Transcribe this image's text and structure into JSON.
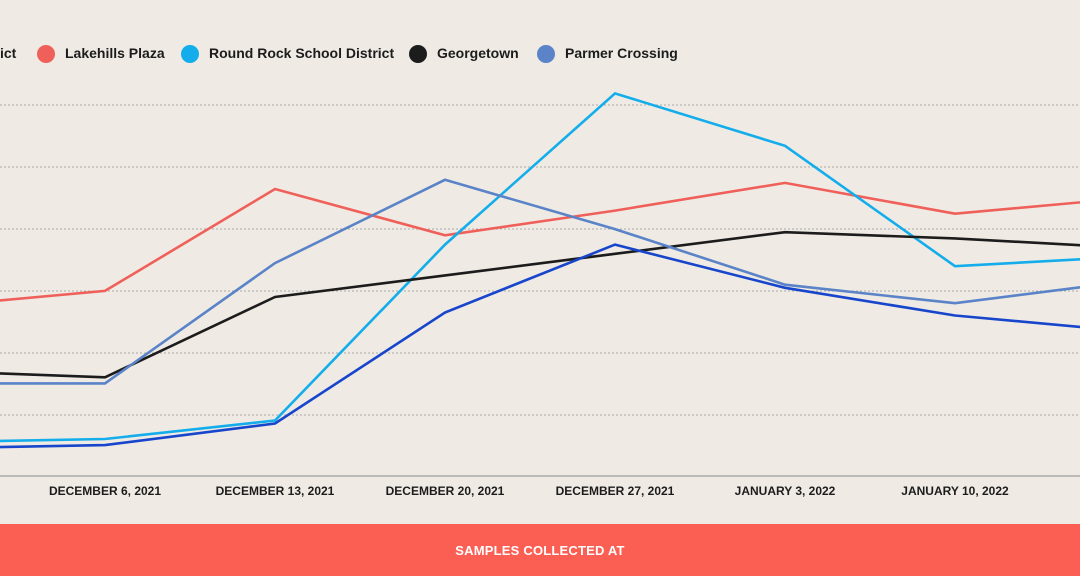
{
  "colors": {
    "background": "#efebe4",
    "gridline": "#a8a8a8",
    "axis": "#8a8a8a",
    "footer": "#fb5e52"
  },
  "footer": {
    "label": "SAMPLES COLLECTED AT"
  },
  "chart_data": {
    "type": "line",
    "title": "",
    "xlabel": "SAMPLES COLLECTED AT",
    "ylabel": "",
    "grid": true,
    "legend_position": "top",
    "x": [
      "2021-11-29",
      "2021-12-06",
      "2021-12-13",
      "2021-12-20",
      "2021-12-27",
      "2022-01-03",
      "2022-01-10",
      "2022-01-17"
    ],
    "x_tick_labels": [
      "DECEMBER 6, 2021",
      "DECEMBER 13, 2021",
      "DECEMBER 20, 2021",
      "DECEMBER 27, 2021",
      "JANUARY 3, 2022",
      "JANUARY 10, 2022"
    ],
    "x_tick_dates": [
      "2021-12-06",
      "2021-12-13",
      "2021-12-20",
      "2021-12-27",
      "2022-01-03",
      "2022-01-10"
    ],
    "partial_legend_label": "ict",
    "series": [
      {
        "name": "Lakehills Plaza",
        "color": "#f0605a",
        "points": [
          [
            "2021-11-29",
            2.75
          ],
          [
            "2021-12-06",
            3.0
          ],
          [
            "2021-12-13",
            4.65
          ],
          [
            "2021-12-20",
            3.9
          ],
          [
            "2021-12-27",
            4.3
          ],
          [
            "2022-01-03",
            4.75
          ],
          [
            "2022-01-10",
            4.25
          ],
          [
            "2022-01-17",
            4.5
          ]
        ]
      },
      {
        "name": "Round Rock School District",
        "color": "#14adeb",
        "points": [
          [
            "2021-11-29",
            0.55
          ],
          [
            "2021-12-06",
            0.6
          ],
          [
            "2021-12-13",
            0.9
          ],
          [
            "2021-12-20",
            3.75
          ],
          [
            "2021-12-27",
            6.2
          ],
          [
            "2022-01-03",
            5.35
          ],
          [
            "2022-01-10",
            3.4
          ],
          [
            "2022-01-17",
            3.55
          ]
        ]
      },
      {
        "name": "Georgetown",
        "color": "#1c1c1c",
        "points": [
          [
            "2021-11-29",
            1.7
          ],
          [
            "2021-12-06",
            1.6
          ],
          [
            "2021-12-13",
            2.9
          ],
          [
            "2021-12-20",
            3.25
          ],
          [
            "2021-12-27",
            3.6
          ],
          [
            "2022-01-03",
            3.95
          ],
          [
            "2022-01-10",
            3.85
          ],
          [
            "2022-01-17",
            3.7
          ]
        ]
      },
      {
        "name": "Parmer Crossing",
        "color": "#5a83c8",
        "points": [
          [
            "2021-11-29",
            1.5
          ],
          [
            "2021-12-06",
            1.5
          ],
          [
            "2021-12-13",
            3.45
          ],
          [
            "2021-12-20",
            4.8
          ],
          [
            "2021-12-27",
            4.0
          ],
          [
            "2022-01-03",
            3.1
          ],
          [
            "2022-01-10",
            2.8
          ],
          [
            "2022-01-17",
            3.15
          ]
        ]
      },
      {
        "name": "",
        "color": "#1746cc",
        "points": [
          [
            "2021-11-29",
            0.45
          ],
          [
            "2021-12-06",
            0.5
          ],
          [
            "2021-12-13",
            0.85
          ],
          [
            "2021-12-20",
            2.65
          ],
          [
            "2021-12-27",
            3.75
          ],
          [
            "2022-01-03",
            3.05
          ],
          [
            "2022-01-10",
            2.6
          ],
          [
            "2022-01-17",
            2.35
          ]
        ]
      }
    ]
  }
}
